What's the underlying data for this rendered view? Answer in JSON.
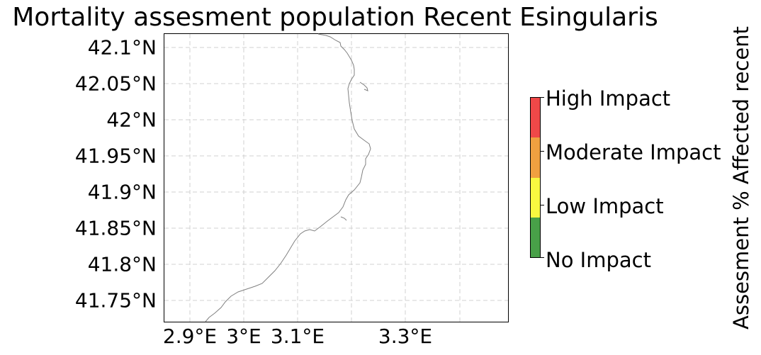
{
  "title": "Mortality assesment population Recent Esingularis",
  "map": {
    "latitude_labels": [
      "42.1°N",
      "42.05°N",
      "42°N",
      "41.95°N",
      "41.9°N",
      "41.85°N",
      "41.8°N",
      "41.75°N"
    ],
    "longitude_labels": [
      "2.9°E",
      "3°E",
      "3.1°E",
      "3.3°E"
    ],
    "gridlines": "dashed",
    "coastline_color": "#808080"
  },
  "colorbar": {
    "title": "Assesment % Affected recent",
    "levels": [
      {
        "label": "High Impact",
        "color": "#f04848"
      },
      {
        "label": "Moderate Impact",
        "color": "#f0a040"
      },
      {
        "label": "Low Impact",
        "color": "#f8f840"
      },
      {
        "label": "No Impact",
        "color": "#48a048"
      }
    ]
  }
}
